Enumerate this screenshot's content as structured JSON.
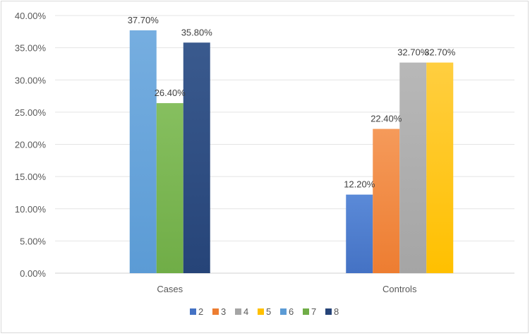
{
  "chart_data": {
    "type": "bar",
    "categories": [
      "Cases",
      "Controls"
    ],
    "series": [
      {
        "name": "2",
        "values": [
          null,
          12.2
        ],
        "labels": [
          "",
          "12.20%"
        ],
        "color": "#4472c4",
        "color_light": "#5b8ad8"
      },
      {
        "name": "3",
        "values": [
          null,
          22.4
        ],
        "labels": [
          "",
          "22.40%"
        ],
        "color": "#ed7d31",
        "color_light": "#f59a5a"
      },
      {
        "name": "4",
        "values": [
          null,
          32.7
        ],
        "labels": [
          "",
          "32.70%"
        ],
        "color": "#a5a5a5",
        "color_light": "#b8b8b8"
      },
      {
        "name": "5",
        "values": [
          null,
          32.7
        ],
        "labels": [
          "",
          "32.70%"
        ],
        "color": "#ffc000",
        "color_light": "#ffce40"
      },
      {
        "name": "6",
        "values": [
          37.7,
          null
        ],
        "labels": [
          "37.70%",
          ""
        ],
        "color": "#5b9bd5",
        "color_light": "#76aee0"
      },
      {
        "name": "7",
        "values": [
          26.4,
          null
        ],
        "labels": [
          "26.40%",
          ""
        ],
        "color": "#70ad47",
        "color_light": "#86bf5f"
      },
      {
        "name": "8",
        "values": [
          35.8,
          null
        ],
        "labels": [
          "35.80%",
          ""
        ],
        "color": "#264478",
        "color_light": "#3a5a8e"
      }
    ],
    "yticks": [
      "0.00%",
      "5.00%",
      "10.00%",
      "15.00%",
      "20.00%",
      "25.00%",
      "30.00%",
      "35.00%",
      "40.00%"
    ],
    "ylim": [
      0,
      40
    ],
    "grid": true,
    "legend": "bottom",
    "title": "",
    "xlabel": "",
    "ylabel": ""
  }
}
